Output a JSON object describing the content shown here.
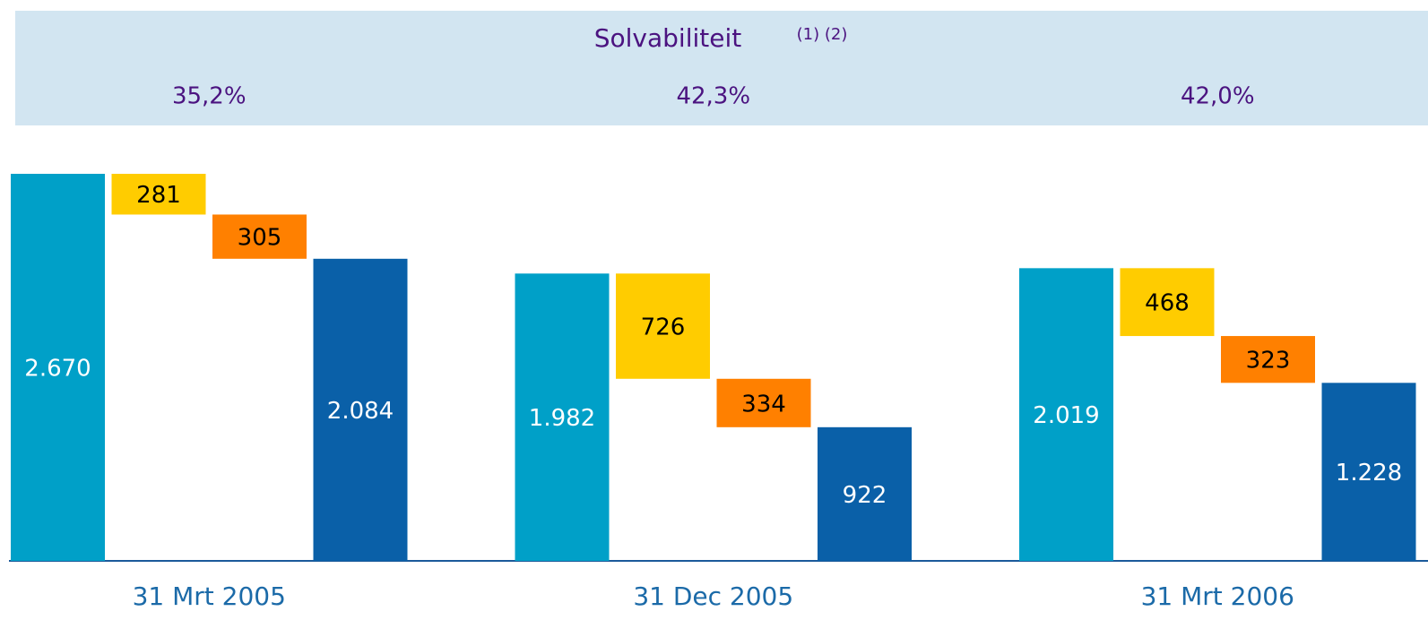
{
  "chart_data": {
    "type": "waterfall",
    "title": "Solvabiliteit",
    "title_note": "(1) (2)",
    "ratios": [
      35.2,
      42.3,
      42.0
    ],
    "ratio_labels": [
      "35,2%",
      "42,3%",
      "42,0%"
    ],
    "categories": [
      "31 Mrt 2005",
      "31 Dec 2005",
      "31 Mrt 2006"
    ],
    "values": [
      [
        2670,
        281,
        305,
        2084
      ],
      [
        1982,
        726,
        334,
        922
      ],
      [
        2019,
        468,
        323,
        1228
      ]
    ],
    "value_labels": [
      [
        "2.670",
        "281",
        "305",
        "2.084"
      ],
      [
        "1.982",
        "726",
        "334",
        "922"
      ],
      [
        "2.019",
        "468",
        "323",
        "1.228"
      ]
    ],
    "colors": [
      "#00a0c8",
      "#ffcc00",
      "#ff8000",
      "#0a60a8"
    ]
  }
}
